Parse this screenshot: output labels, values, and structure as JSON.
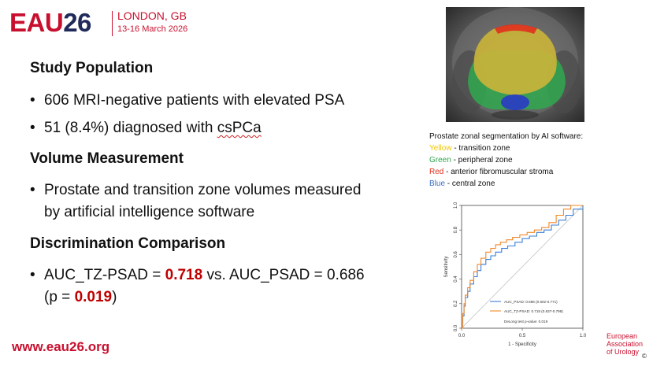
{
  "header": {
    "logo_eau": "EAU",
    "logo_num": "26",
    "city": "LONDON, GB",
    "dates": "13-16 March 2026"
  },
  "sections": {
    "study_population": {
      "heading": "Study Population",
      "bullet1": "606 MRI-negative patients with elevated PSA",
      "bullet2_pre": "51 (8.4%) diagnosed with ",
      "bullet2_term": "csPCa"
    },
    "volume": {
      "heading": "Volume Measurement",
      "bullet_line1": "Prostate and transition zone volumes measured",
      "bullet_line2": "by artificial intelligence software"
    },
    "discrimination": {
      "heading": "Discrimination Comparison",
      "line1_pre": "AUC_TZ-PSAD = ",
      "line1_val": "0.718",
      "line1_mid": " vs. AUC_PSAD = 0.686",
      "line2_pre": "(p = ",
      "line2_val": "0.019",
      "line2_post": ")"
    }
  },
  "segmentation_caption": {
    "title": "Prostate zonal segmentation by AI software:",
    "items": [
      {
        "color_name": "Yellow",
        "desc": " - transition zone",
        "color": "#f2c500"
      },
      {
        "color_name": "Green",
        "desc": " - peripheral zone",
        "color": "#2fa84f"
      },
      {
        "color_name": "Red",
        "desc": " - anterior fibromuscular stroma",
        "color": "#e0301e"
      },
      {
        "color_name": "Blue",
        "desc": " - central zone",
        "color": "#3d6fc4"
      }
    ]
  },
  "chart_data": {
    "type": "line",
    "xlabel": "1 - Specificity",
    "ylabel": "Sensitivity",
    "xlim": [
      0,
      1
    ],
    "ylim": [
      0,
      1
    ],
    "xticks": [
      "0.0",
      "0.5",
      "1.0"
    ],
    "yticks": [
      "0.0",
      "0.2",
      "0.4",
      "0.6",
      "0.8",
      "1.0"
    ],
    "legend_position": "bottom-right",
    "series": [
      {
        "name": "AUC_PSAD: 0.686 (0.602-0.771)",
        "color": "#3b7fd6",
        "x": [
          0,
          0.01,
          0.02,
          0.03,
          0.05,
          0.07,
          0.1,
          0.13,
          0.16,
          0.2,
          0.24,
          0.28,
          0.33,
          0.38,
          0.44,
          0.5,
          0.56,
          0.62,
          0.68,
          0.74,
          0.8,
          0.86,
          0.92,
          1.0
        ],
        "y": [
          0,
          0.1,
          0.18,
          0.25,
          0.3,
          0.36,
          0.42,
          0.47,
          0.52,
          0.56,
          0.59,
          0.62,
          0.65,
          0.67,
          0.7,
          0.73,
          0.75,
          0.78,
          0.8,
          0.84,
          0.88,
          0.92,
          0.97,
          1.0
        ]
      },
      {
        "name": "AUC_TZ-PSAD: 0.718 (0.637-0.798)",
        "color": "#f0882a",
        "x": [
          0,
          0.01,
          0.02,
          0.03,
          0.05,
          0.07,
          0.1,
          0.13,
          0.16,
          0.2,
          0.24,
          0.28,
          0.32,
          0.37,
          0.42,
          0.48,
          0.54,
          0.6,
          0.66,
          0.72,
          0.78,
          0.84,
          0.9,
          1.0
        ],
        "y": [
          0,
          0.12,
          0.2,
          0.27,
          0.33,
          0.39,
          0.46,
          0.52,
          0.57,
          0.62,
          0.65,
          0.68,
          0.7,
          0.72,
          0.74,
          0.76,
          0.78,
          0.8,
          0.82,
          0.86,
          0.92,
          0.97,
          1.0,
          1.0
        ]
      }
    ],
    "annotation": "DeLong test p-value: 0.019"
  },
  "footer": {
    "url": "www.eau26.org",
    "assoc_line1": "European",
    "assoc_line2": "Association",
    "assoc_line3": "of Urology",
    "copyright": "©"
  }
}
